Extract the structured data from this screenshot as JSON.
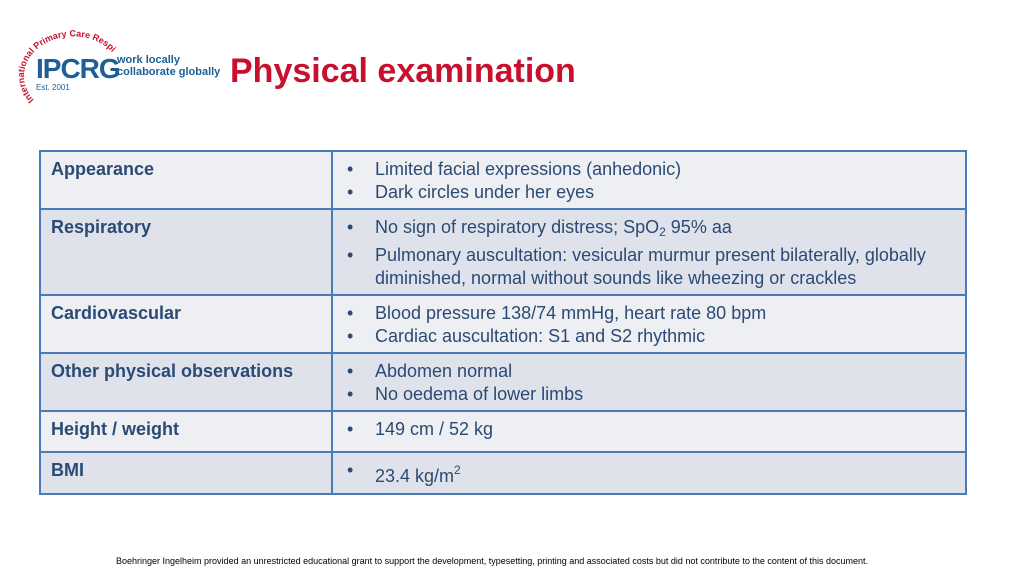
{
  "logo": {
    "abbrev": "IPCRG",
    "est": "Est. 2001",
    "tag_line1": "work locally",
    "tag_line2": "collaborate globally",
    "ring_text": "International Primary Care Respiratory Group",
    "ring_color": "#c8102e",
    "brand_color": "#1d5f96"
  },
  "title": "Physical examination",
  "rows": [
    {
      "label": "Appearance",
      "items": [
        "Limited facial expressions (anhedonic)",
        "Dark circles under her eyes"
      ]
    },
    {
      "label": "Respiratory",
      "items": [
        "No sign of respiratory distress; SpO",
        "2",
        " 95% aa",
        "Pulmonary auscultation: vesicular murmur present bilaterally, globally diminished, normal without sounds like wheezing or crackles"
      ]
    },
    {
      "label": "Cardiovascular",
      "items": [
        "Blood pressure 138/74 mmHg, heart rate 80 bpm",
        "Cardiac auscultation: S1 and S2 rhythmic"
      ]
    },
    {
      "label": "Other physical observations",
      "items": [
        "Abdomen normal",
        "No oedema of lower limbs"
      ]
    },
    {
      "label": "Height / weight",
      "items": [
        "149 cm / 52 kg"
      ]
    },
    {
      "label": "BMI",
      "items": [
        "23.4 kg/m",
        "2"
      ]
    }
  ],
  "footer": "Boehringer Ingelheim provided an unrestricted educational grant to support the development, typesetting, printing and associated costs but did not contribute to the content of this document."
}
